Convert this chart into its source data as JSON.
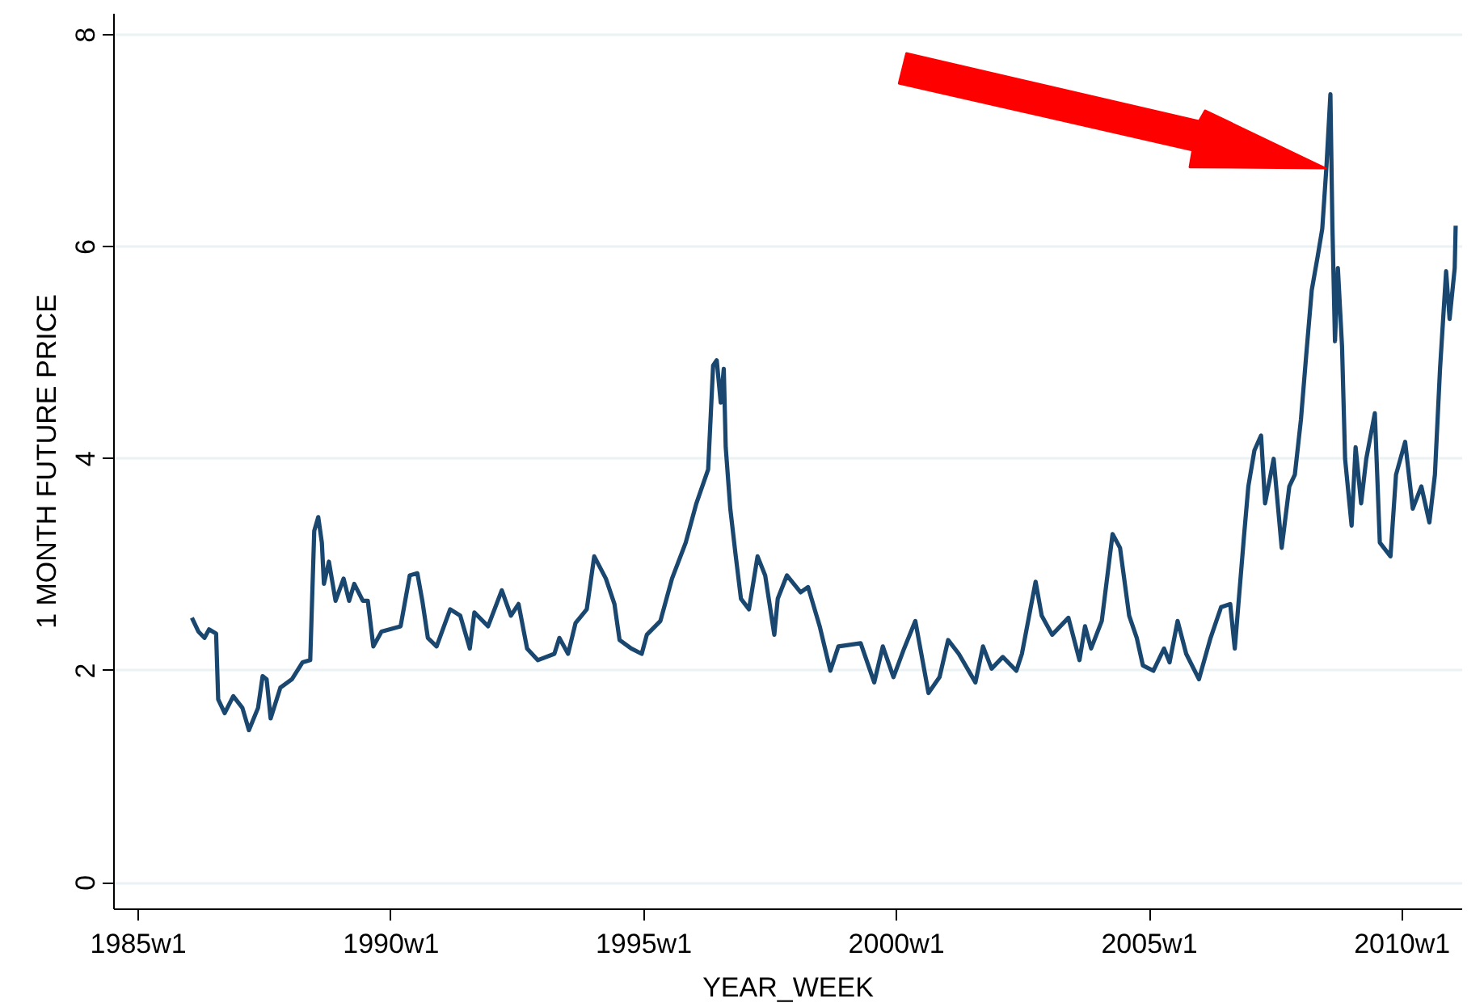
{
  "chart_data": {
    "type": "line",
    "xlabel": "YEAR_WEEK",
    "ylabel": "1 MONTH FUTURE PRICE",
    "xlim": [
      "1984-07-09",
      "2011-03-11"
    ],
    "ylim": [
      -0.25,
      8.2
    ],
    "xticks": [
      {
        "value": "1985-01-01",
        "label": "1985w1"
      },
      {
        "value": "1990-01-01",
        "label": "1990w1"
      },
      {
        "value": "1995-01-01",
        "label": "1995w1"
      },
      {
        "value": "2000-01-01",
        "label": "2000w1"
      },
      {
        "value": "2005-01-01",
        "label": "2005w1"
      },
      {
        "value": "2010-01-01",
        "label": "2010w1"
      }
    ],
    "yticks": [
      0,
      2,
      4,
      6,
      8
    ],
    "grid": "y",
    "line_style": "solid",
    "series": [
      {
        "color": "#1a476f",
        "x": [
          "1986-01-23",
          "1986-03-11",
          "1986-04-24",
          "1986-05-27",
          "1986-07-17",
          "1986-08-01",
          "1986-09-17",
          "1986-11-18",
          "1987-01-23",
          "1987-03-11",
          "1987-05-16",
          "1987-06-18",
          "1987-07-17",
          "1987-08-15",
          "1987-10-24",
          "1988-01-16",
          "1988-04-02",
          "1988-05-27",
          "1988-06-25",
          "1988-07-24",
          "1988-08-19",
          "1988-09-03",
          "1988-10-09",
          "1988-11-26",
          "1989-01-23",
          "1989-03-04",
          "1989-04-10",
          "1989-06-11",
          "1989-07-17",
          "1989-08-26",
          "1989-10-24",
          "1990-03-11",
          "1990-05-16",
          "1990-07-10",
          "1990-08-15",
          "1990-09-24",
          "1990-11-26",
          "1991-03-04",
          "1991-05-16",
          "1991-07-24",
          "1991-08-26",
          "1991-12-03",
          "1992-03-11",
          "1992-05-16",
          "1992-07-10",
          "1992-09-10",
          "1992-11-26",
          "1993-03-26",
          "1993-05-01",
          "1993-07-03",
          "1993-08-26",
          "1993-11-15",
          "1994-01-08",
          "1994-04-02",
          "1994-06-03",
          "1994-07-10",
          "1994-10-02",
          "1994-12-17",
          "1995-01-23",
          "1995-05-01",
          "1995-07-24",
          "1995-10-31",
          "1996-01-16",
          "1996-04-10",
          "1996-05-16",
          "1996-06-11",
          "1996-07-10",
          "1996-08-01",
          "1996-08-15",
          "1996-09-17",
          "1996-10-24",
          "1996-12-03",
          "1997-01-30",
          "1997-04-02",
          "1997-05-27",
          "1997-08-01",
          "1997-08-26",
          "1997-10-31",
          "1998-02-07",
          "1998-04-02",
          "1998-06-25",
          "1998-09-10",
          "1998-11-07",
          "1999-04-17",
          "1999-07-24",
          "1999-09-24",
          "1999-12-10",
          "2000-02-25",
          "2000-05-16",
          "2000-08-19",
          "2000-11-07",
          "2001-01-08",
          "2001-03-26",
          "2001-07-24",
          "2001-09-17",
          "2001-11-18",
          "2002-02-07",
          "2002-05-16",
          "2002-06-25",
          "2002-10-02",
          "2002-11-15",
          "2003-01-30",
          "2003-05-27",
          "2003-08-15",
          "2003-09-24",
          "2003-11-07",
          "2004-01-23",
          "2004-04-10",
          "2004-06-03",
          "2004-08-08",
          "2004-10-02",
          "2004-11-15",
          "2005-01-30",
          "2005-04-17",
          "2005-05-27",
          "2005-07-24",
          "2005-09-24",
          "2005-12-25",
          "2006-03-19",
          "2006-06-03",
          "2006-08-08",
          "2006-09-10",
          "2006-11-15",
          "2006-12-17",
          "2007-01-30",
          "2007-03-19",
          "2007-04-17",
          "2007-06-18",
          "2007-08-15",
          "2007-10-09",
          "2007-11-18",
          "2008-01-01",
          "2008-02-07",
          "2008-03-19",
          "2008-05-01",
          "2008-06-03",
          "2008-07-03",
          "2008-08-01",
          "2008-08-15",
          "2008-09-03",
          "2008-09-24",
          "2008-10-24",
          "2008-11-15",
          "2009-01-01",
          "2009-01-30",
          "2009-03-11",
          "2009-04-17",
          "2009-06-18",
          "2009-07-24",
          "2009-10-09",
          "2009-11-18",
          "2010-01-23",
          "2010-03-19",
          "2010-05-20",
          "2010-07-17",
          "2010-08-26",
          "2010-10-02",
          "2010-11-15",
          "2010-12-10",
          "2011-01-16",
          "2011-01-23"
        ],
        "values": [
          2.5,
          2.37,
          2.31,
          2.39,
          2.35,
          1.73,
          1.6,
          1.76,
          1.65,
          1.44,
          1.65,
          1.95,
          1.92,
          1.55,
          1.84,
          1.92,
          2.08,
          2.1,
          3.32,
          3.45,
          3.21,
          2.82,
          3.03,
          2.66,
          2.87,
          2.66,
          2.82,
          2.66,
          2.66,
          2.23,
          2.37,
          2.42,
          2.9,
          2.92,
          2.66,
          2.31,
          2.23,
          2.58,
          2.52,
          2.21,
          2.55,
          2.42,
          2.76,
          2.52,
          2.63,
          2.21,
          2.1,
          2.16,
          2.31,
          2.16,
          2.45,
          2.58,
          3.08,
          2.87,
          2.63,
          2.29,
          2.21,
          2.16,
          2.34,
          2.47,
          2.87,
          3.21,
          3.58,
          3.9,
          4.88,
          4.93,
          4.53,
          4.85,
          4.11,
          3.53,
          3.11,
          2.68,
          2.58,
          3.08,
          2.9,
          2.34,
          2.68,
          2.9,
          2.74,
          2.79,
          2.42,
          2.0,
          2.23,
          2.26,
          1.89,
          2.23,
          1.94,
          2.21,
          2.47,
          1.79,
          1.94,
          2.29,
          2.16,
          1.89,
          2.23,
          2.02,
          2.13,
          2.0,
          2.16,
          2.84,
          2.52,
          2.34,
          2.5,
          2.1,
          2.42,
          2.21,
          2.47,
          3.29,
          3.16,
          2.52,
          2.31,
          2.05,
          2.0,
          2.21,
          2.08,
          2.47,
          2.16,
          1.92,
          2.31,
          2.6,
          2.63,
          2.21,
          3.26,
          3.74,
          4.08,
          4.22,
          3.58,
          4.0,
          3.16,
          3.74,
          3.85,
          4.37,
          4.96,
          5.59,
          5.91,
          6.17,
          6.75,
          7.44,
          6.22,
          5.11,
          5.8,
          5.06,
          4.0,
          3.37,
          4.11,
          3.58,
          4.0,
          4.43,
          3.21,
          3.08,
          3.85,
          4.16,
          3.53,
          3.74,
          3.4,
          3.85,
          4.85,
          5.77,
          5.32,
          5.8,
          6.2
        ]
      }
    ]
  }
}
